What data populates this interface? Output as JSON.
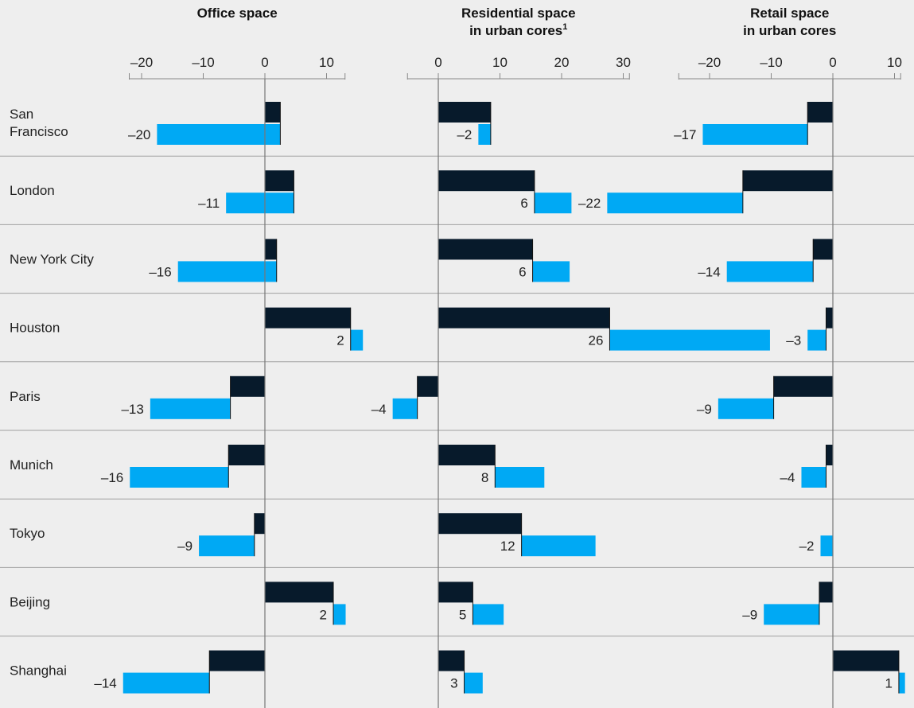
{
  "chart_data": {
    "type": "bar",
    "layout": "small-multiples-horizontal-bar",
    "categories": [
      "San Francisco",
      "London",
      "New York City",
      "Houston",
      "Paris",
      "Munich",
      "Tokyo",
      "Beijing",
      "Shanghai"
    ],
    "colors": {
      "dark": "#071a2b",
      "light": "#00a9f4",
      "grid": "#a0a0a0",
      "axis": "#888888"
    },
    "panels": [
      {
        "title_lines": [
          "Office space"
        ],
        "title_superscript": "",
        "xlim": [
          -22,
          13
        ],
        "ticks": [
          -20,
          -10,
          0,
          10
        ],
        "tick_labels": [
          "–20",
          "–10",
          "0",
          "10"
        ],
        "series": [
          {
            "values": [
              2.5,
              4.7,
              1.9,
              13.9,
              -5.6,
              -5.9,
              -1.7,
              11.1,
              -9.0
            ]
          },
          {
            "values": [
              -20,
              -11,
              -16,
              2,
              -13,
              -16,
              -9,
              2,
              -14
            ]
          }
        ],
        "data_labels": [
          "–20",
          "–11",
          "–16",
          "2",
          "–13",
          "–16",
          "–9",
          "2",
          "–14"
        ]
      },
      {
        "title_lines": [
          "Residential space",
          "in urban cores"
        ],
        "title_superscript": "1",
        "xlim": [
          -5,
          31
        ],
        "ticks": [
          0,
          10,
          20,
          30
        ],
        "tick_labels": [
          "0",
          "10",
          "20",
          "30"
        ],
        "series": [
          {
            "values": [
              8.5,
              15.6,
              15.3,
              27.8,
              -3.4,
              9.2,
              13.5,
              5.6,
              4.2
            ]
          },
          {
            "values": [
              -2,
              6,
              6,
              26,
              -4,
              8,
              12,
              5,
              3
            ]
          }
        ],
        "data_labels": [
          "–2",
          "6",
          "6",
          "26",
          "–4",
          "8",
          "12",
          "5",
          "3"
        ]
      },
      {
        "title_lines": [
          "Retail space",
          "in urban cores"
        ],
        "title_superscript": "",
        "xlim": [
          -25,
          11
        ],
        "ticks": [
          -20,
          -10,
          0,
          10
        ],
        "tick_labels": [
          "–20",
          "–10",
          "0",
          "10"
        ],
        "series": [
          {
            "values": [
              -4.1,
              -14.6,
              -3.2,
              -1.1,
              -9.6,
              -1.1,
              0,
              -2.2,
              10.7
            ]
          },
          {
            "values": [
              -17,
              -22,
              -14,
              -3,
              -9,
              -4,
              -2,
              -9,
              1
            ]
          }
        ],
        "data_labels": [
          "–17",
          "–22",
          "–14",
          "–3",
          "–9",
          "–4",
          "–2",
          "–9",
          "1"
        ]
      }
    ]
  }
}
